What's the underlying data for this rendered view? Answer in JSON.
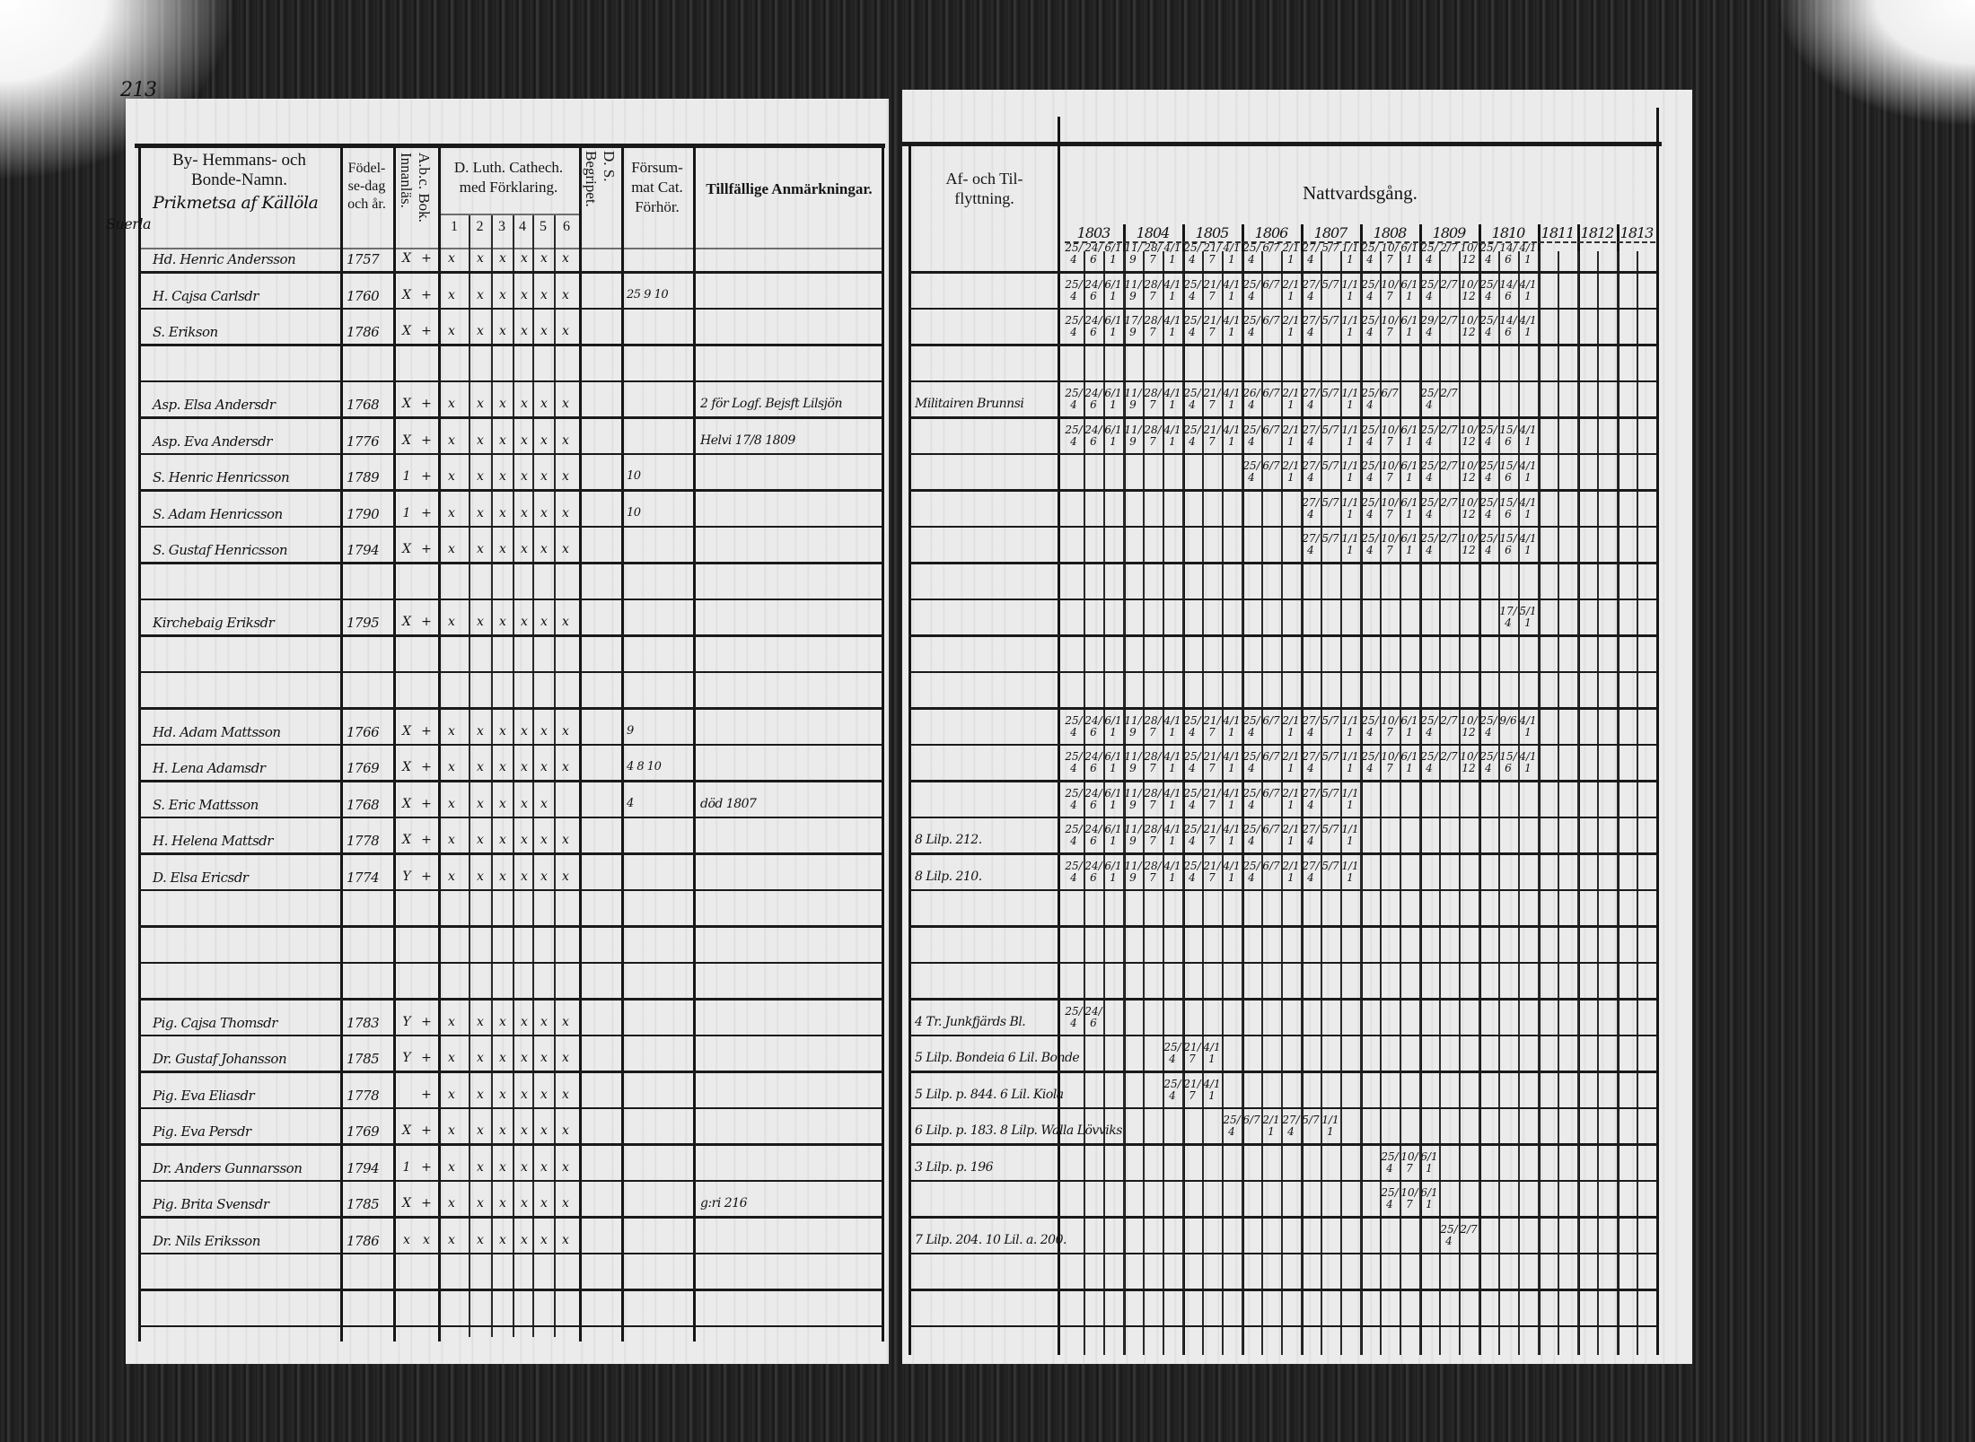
{
  "left_page": {
    "page_number": "213",
    "headers": {
      "name_line1": "By- Hemmans- och",
      "name_line2": "Bonde-Namn.",
      "village": "Prikmetsa af Källöla",
      "birth_line1": "Födel-",
      "birth_line2": "se-dag",
      "birth_line3": "och år.",
      "abc": "A.b.c. Bok.",
      "innanlas": "Innanläs.",
      "catech_line1": "D. Luth. Cathech.",
      "catech_line2": "med Förklaring.",
      "catech_parts": [
        "1",
        "2",
        "3",
        "4",
        "5",
        "6"
      ],
      "ds": "D. S.",
      "begripet": "Begripet.",
      "forsum_line1": "Försum-",
      "forsum_line2": "mat Cat.",
      "forsum_line3": "Förhör.",
      "remarks": "Tillfällige Anmärkningar."
    },
    "margin_note": "Suerla",
    "rows": [
      {
        "name": "Hd. Henric Andersson",
        "born": "1757",
        "abc": "X",
        "inn": "+",
        "cat": [
          "x",
          "x",
          "x",
          "x",
          "x",
          "x"
        ],
        "forsum": "",
        "remark": ""
      },
      {
        "name": "H. Cajsa Carlsdr",
        "born": "1760",
        "abc": "X",
        "inn": "+",
        "cat": [
          "x",
          "x",
          "x",
          "x",
          "x",
          "x"
        ],
        "forsum": "25 9 10",
        "remark": ""
      },
      {
        "name": "S. Erikson",
        "born": "1786",
        "abc": "X",
        "inn": "+",
        "cat": [
          "x",
          "x",
          "x",
          "x",
          "x",
          "x"
        ],
        "forsum": "",
        "remark": ""
      },
      {
        "name": "",
        "born": "",
        "abc": "",
        "inn": "",
        "cat": [],
        "forsum": "",
        "remark": ""
      },
      {
        "name": "Asp. Elsa Andersdr",
        "born": "1768",
        "abc": "X",
        "inn": "+",
        "cat": [
          "x",
          "x",
          "x",
          "x",
          "x",
          "x"
        ],
        "forsum": "",
        "remark": "2 för Logf. Bejsft Lilsjön"
      },
      {
        "name": "Asp. Eva Andersdr",
        "born": "1776",
        "abc": "X",
        "inn": "+",
        "cat": [
          "x",
          "x",
          "x",
          "x",
          "x",
          "x"
        ],
        "forsum": "",
        "remark": "Helvi 17/8 1809"
      },
      {
        "name": "S. Henric Henricsson",
        "born": "1789",
        "abc": "1",
        "inn": "+",
        "cat": [
          "x",
          "x",
          "x",
          "x",
          "x",
          "x"
        ],
        "forsum": "10",
        "remark": ""
      },
      {
        "name": "S. Adam Henricsson",
        "born": "1790",
        "abc": "1",
        "inn": "+",
        "cat": [
          "x",
          "x",
          "x",
          "x",
          "x",
          "x"
        ],
        "forsum": "10",
        "remark": ""
      },
      {
        "name": "S. Gustaf Henricsson",
        "born": "1794",
        "abc": "X",
        "inn": "+",
        "cat": [
          "x",
          "x",
          "x",
          "x",
          "x",
          "x"
        ],
        "forsum": "",
        "remark": ""
      },
      {
        "name": "",
        "born": "",
        "abc": "",
        "inn": "",
        "cat": [],
        "forsum": "",
        "remark": ""
      },
      {
        "name": "Kirchebaig Eriksdr",
        "born": "1795",
        "abc": "X",
        "inn": "+",
        "cat": [
          "x",
          "x",
          "x",
          "x",
          "x",
          "x"
        ],
        "forsum": "",
        "remark": ""
      },
      {
        "name": "",
        "born": "",
        "abc": "",
        "inn": "",
        "cat": [],
        "forsum": "",
        "remark": ""
      },
      {
        "name": "",
        "born": "",
        "abc": "",
        "inn": "",
        "cat": [],
        "forsum": "",
        "remark": ""
      },
      {
        "name": "Hd. Adam Mattsson",
        "born": "1766",
        "abc": "X",
        "inn": "+",
        "cat": [
          "x",
          "x",
          "x",
          "x",
          "x",
          "x"
        ],
        "forsum": "9",
        "remark": ""
      },
      {
        "name": "H. Lena Adamsdr",
        "born": "1769",
        "abc": "X",
        "inn": "+",
        "cat": [
          "x",
          "x",
          "x",
          "x",
          "x",
          "x"
        ],
        "forsum": "4 8 10",
        "remark": ""
      },
      {
        "name": "S. Eric Mattsson",
        "born": "1768",
        "abc": "X",
        "inn": "+",
        "cat": [
          "x",
          "x",
          "x",
          "x",
          "x",
          ""
        ],
        "forsum": "4",
        "remark": "död 1807"
      },
      {
        "name": "H. Helena Mattsdr",
        "born": "1778",
        "abc": "X",
        "inn": "+",
        "cat": [
          "x",
          "x",
          "x",
          "x",
          "x",
          "x"
        ],
        "forsum": "",
        "remark": ""
      },
      {
        "name": "D. Elsa Ericsdr",
        "born": "1774",
        "abc": "Y",
        "inn": "+",
        "cat": [
          "x",
          "x",
          "x",
          "x",
          "x",
          "x"
        ],
        "forsum": "",
        "remark": ""
      },
      {
        "name": "",
        "born": "",
        "abc": "",
        "inn": "",
        "cat": [],
        "forsum": "",
        "remark": ""
      },
      {
        "name": "",
        "born": "",
        "abc": "",
        "inn": "",
        "cat": [],
        "forsum": "",
        "remark": ""
      },
      {
        "name": "",
        "born": "",
        "abc": "",
        "inn": "",
        "cat": [],
        "forsum": "",
        "remark": ""
      },
      {
        "name": "Pig. Cajsa Thomsdr",
        "born": "1783",
        "abc": "Y",
        "inn": "+",
        "cat": [
          "x",
          "x",
          "x",
          "x",
          "x",
          "x"
        ],
        "forsum": "",
        "remark": ""
      },
      {
        "name": "Dr. Gustaf Johansson",
        "born": "1785",
        "abc": "Y",
        "inn": "+",
        "cat": [
          "x",
          "x",
          "x",
          "x",
          "x",
          "x"
        ],
        "forsum": "",
        "remark": ""
      },
      {
        "name": "Pig. Eva Eliasdr",
        "born": "1778",
        "abc": "",
        "inn": "+",
        "cat": [
          "x",
          "x",
          "x",
          "x",
          "x",
          "x"
        ],
        "forsum": "",
        "remark": ""
      },
      {
        "name": "Pig. Eva Persdr",
        "born": "1769",
        "abc": "X",
        "inn": "+",
        "cat": [
          "x",
          "x",
          "x",
          "x",
          "x",
          "x"
        ],
        "forsum": "",
        "remark": ""
      },
      {
        "name": "Dr. Anders Gunnarsson",
        "born": "1794",
        "abc": "1",
        "inn": "+",
        "cat": [
          "x",
          "x",
          "x",
          "x",
          "x",
          "x"
        ],
        "forsum": "",
        "remark": ""
      },
      {
        "name": "Pig. Brita Svensdr",
        "born": "1785",
        "abc": "X",
        "inn": "+",
        "cat": [
          "x",
          "x",
          "x",
          "x",
          "x",
          "x"
        ],
        "forsum": "",
        "remark": "g:ri 216"
      },
      {
        "name": "Dr. Nils Eriksson",
        "born": "1786",
        "abc": "x",
        "inn": "x",
        "cat": [
          "x",
          "x",
          "x",
          "x",
          "x",
          "x"
        ],
        "forsum": "",
        "remark": ""
      }
    ]
  },
  "right_page": {
    "headers": {
      "moving_line1": "Af- och Til-",
      "moving_line2": "flyttning.",
      "communion": "Nattvardsgång."
    },
    "years": [
      "1803",
      "1804",
      "1805",
      "1806",
      "1807",
      "1808",
      "1809",
      "1810",
      "1811",
      "1812",
      "1813"
    ],
    "rows": [
      {
        "moved": "",
        "start": 0,
        "dates": [
          "25/4",
          "24/6",
          "6/11",
          "11/9",
          "28/7",
          "4/11",
          "25/4",
          "21/7",
          "4/11",
          "25/4",
          "6/7",
          "2/11",
          "27/4",
          "5/7",
          "1/11",
          "25/4",
          "10/7",
          "6/11",
          "25/4",
          "2/7",
          "10/12",
          "25/4",
          "14/6",
          "4/11"
        ]
      },
      {
        "moved": "",
        "start": 0,
        "dates": [
          "25/4",
          "24/6",
          "6/11",
          "11/9",
          "28/7",
          "4/11",
          "25/4",
          "21/7",
          "4/11",
          "25/4",
          "6/7",
          "2/11",
          "27/4",
          "5/7",
          "1/11",
          "25/4",
          "10/7",
          "6/11",
          "25/4",
          "2/7",
          "10/12",
          "25/4",
          "14/6",
          "4/11"
        ]
      },
      {
        "moved": "",
        "start": 0,
        "dates": [
          "25/4",
          "24/6",
          "6/11",
          "17/9",
          "28/7",
          "4/11",
          "25/4",
          "21/7",
          "4/11",
          "25/4",
          "6/7",
          "2/11",
          "27/4",
          "5/7",
          "1/11",
          "25/4",
          "10/7",
          "6/11",
          "29/4",
          "2/7",
          "10/12",
          "25/4",
          "14/6",
          "4/11"
        ]
      },
      {
        "moved": "",
        "start": 0,
        "dates": []
      },
      {
        "moved": "Militairen Brunnsi",
        "start": 0,
        "dates": [
          "25/4",
          "24/6",
          "6/11",
          "11/9",
          "28/7",
          "4/11",
          "25/4",
          "21/7",
          "4/11",
          "26/4",
          "6/7",
          "2/11",
          "27/4",
          "5/7",
          "1/11",
          "25/4",
          "6/7",
          "",
          "25/4",
          "2/7"
        ]
      },
      {
        "moved": "",
        "start": 0,
        "dates": [
          "25/4",
          "24/6",
          "6/11",
          "11/9",
          "28/7",
          "4/11",
          "25/4",
          "21/7",
          "4/11",
          "25/4",
          "6/7",
          "2/11",
          "27/4",
          "5/7",
          "1/11",
          "25/4",
          "10/7",
          "6/11",
          "25/4",
          "2/7",
          "10/12",
          "25/4",
          "15/6",
          "4/11"
        ]
      },
      {
        "moved": "",
        "start": 9,
        "dates": [
          "25/4",
          "6/7",
          "2/11",
          "27/4",
          "5/7",
          "1/11",
          "25/4",
          "10/7",
          "6/11",
          "25/4",
          "2/7",
          "10/12",
          "25/4",
          "15/6",
          "4/11"
        ]
      },
      {
        "moved": "",
        "start": 12,
        "dates": [
          "27/4",
          "5/7",
          "1/11",
          "25/4",
          "10/7",
          "6/11",
          "25/4",
          "2/7",
          "10/12",
          "25/4",
          "15/6",
          "4/11"
        ]
      },
      {
        "moved": "",
        "start": 12,
        "dates": [
          "27/4",
          "5/7",
          "1/11",
          "25/4",
          "10/7",
          "6/11",
          "25/4",
          "2/7",
          "10/12",
          "25/4",
          "15/6",
          "4/11"
        ]
      },
      {
        "moved": "",
        "start": 0,
        "dates": []
      },
      {
        "moved": "",
        "start": 22,
        "dates": [
          "17/4",
          "5/11"
        ]
      },
      {
        "moved": "",
        "start": 0,
        "dates": []
      },
      {
        "moved": "",
        "start": 0,
        "dates": []
      },
      {
        "moved": "",
        "start": 0,
        "dates": [
          "25/4",
          "24/6",
          "6/11",
          "11/9",
          "28/7",
          "4/11",
          "25/4",
          "21/7",
          "4/11",
          "25/4",
          "6/7",
          "2/11",
          "27/4",
          "5/7",
          "1/11",
          "25/4",
          "10/7",
          "6/11",
          "25/4",
          "2/7",
          "10/12",
          "25/4",
          "9/6",
          "4/11"
        ]
      },
      {
        "moved": "",
        "start": 0,
        "dates": [
          "25/4",
          "24/6",
          "6/11",
          "11/9",
          "28/7",
          "4/11",
          "25/4",
          "21/7",
          "4/11",
          "25/4",
          "6/7",
          "2/11",
          "27/4",
          "5/7",
          "1/11",
          "25/4",
          "10/7",
          "6/11",
          "25/4",
          "2/7",
          "10/12",
          "25/4",
          "15/6",
          "4/11"
        ]
      },
      {
        "moved": "",
        "start": 0,
        "dates": [
          "25/4",
          "24/6",
          "6/11",
          "11/9",
          "28/7",
          "4/11",
          "25/4",
          "21/7",
          "4/11",
          "25/4",
          "6/7",
          "2/11",
          "27/4",
          "5/7",
          "1/11"
        ]
      },
      {
        "moved": "8 Lilp. 212.",
        "start": 0,
        "dates": [
          "25/4",
          "24/6",
          "6/11",
          "11/9",
          "28/7",
          "4/11",
          "25/4",
          "21/7",
          "4/11",
          "25/4",
          "6/7",
          "2/11",
          "27/4",
          "5/7",
          "1/11"
        ]
      },
      {
        "moved": "8 Lilp. 210.",
        "start": 0,
        "dates": [
          "25/4",
          "24/6",
          "6/11",
          "11/9",
          "28/7",
          "4/11",
          "25/4",
          "21/7",
          "4/11",
          "25/4",
          "6/7",
          "2/11",
          "27/4",
          "5/7",
          "1/11"
        ]
      },
      {
        "moved": "",
        "start": 0,
        "dates": []
      },
      {
        "moved": "",
        "start": 0,
        "dates": []
      },
      {
        "moved": "",
        "start": 0,
        "dates": []
      },
      {
        "moved": "4 Tr. Junkfjärds Bl.",
        "start": 0,
        "dates": [
          "25/4",
          "24/6"
        ]
      },
      {
        "moved": "5 Lilp. Bondeia 6 Lil. Bonde",
        "start": 5,
        "dates": [
          "25/4",
          "21/7",
          "4/11"
        ]
      },
      {
        "moved": "5 Lilp. p. 844. 6 Lil. Kiola",
        "start": 5,
        "dates": [
          "25/4",
          "21/7",
          "4/11"
        ]
      },
      {
        "moved": "6 Lilp. p. 183. 8 Lilp. Walla Lövviks",
        "start": 8,
        "dates": [
          "25/4",
          "6/7",
          "2/11",
          "27/4",
          "5/7",
          "1/11"
        ]
      },
      {
        "moved": "3 Lilp. p. 196",
        "start": 16,
        "dates": [
          "25/4",
          "10/7",
          "6/11"
        ]
      },
      {
        "moved": "",
        "start": 16,
        "dates": [
          "25/4",
          "10/7",
          "6/11"
        ]
      },
      {
        "moved": "7 Lilp. 204. 10 Lil. a. 200.",
        "start": 19,
        "dates": [
          "25/4",
          "2/7"
        ]
      }
    ]
  }
}
